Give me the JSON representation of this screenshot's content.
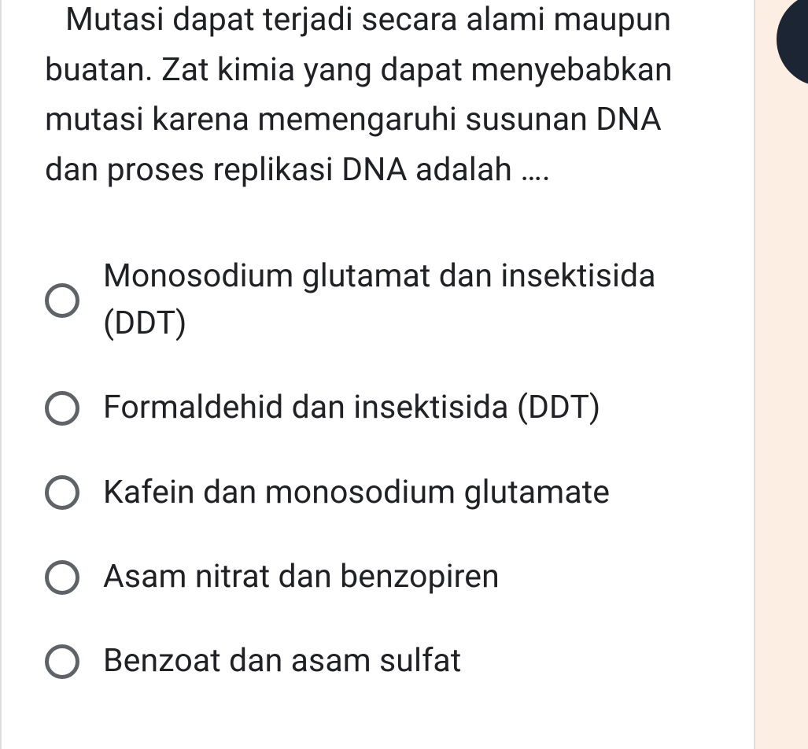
{
  "colors": {
    "text": "#202124",
    "radio_border": "#5f6368",
    "card_border": "#dadce0",
    "background": "#ffffff",
    "side_bg": "#fceee3",
    "corner_accent": "#1b2533"
  },
  "typography": {
    "family": "Roboto, Helvetica Neue, Arial, sans-serif",
    "question_fontsize": 41,
    "option_fontsize": 41,
    "line_height": 1.55
  },
  "question": {
    "text": "Mutasi dapat terjadi secara alami maupun buatan. Zat kimia yang dapat menyebabkan mutasi karena memengaruhi susunan DNA dan proses replikasi DNA adalah …."
  },
  "options": [
    {
      "label": "Monosodium glutamat dan insektisida (DDT)",
      "selected": false
    },
    {
      "label": "Formaldehid dan insektisida (DDT)",
      "selected": false
    },
    {
      "label": "Kafein dan monosodium glutamate",
      "selected": false
    },
    {
      "label": "Asam nitrat dan benzopiren",
      "selected": false
    },
    {
      "label": "Benzoat dan asam sulfat",
      "selected": false
    }
  ]
}
